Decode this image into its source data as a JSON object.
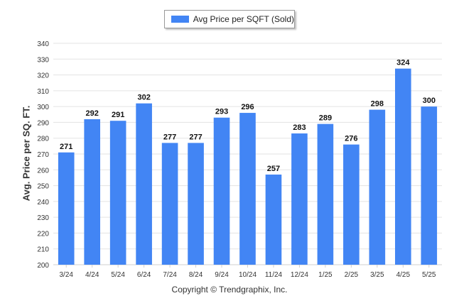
{
  "legend": {
    "label": "Avg Price per SQFT (Sold)",
    "color": "#4285f4"
  },
  "footer": "Copyright © Trendgraphix, Inc.",
  "chart_data": {
    "type": "bar",
    "ylabel": "Avg. Price per SQ. FT.",
    "xlabel": "",
    "categories": [
      "3/24",
      "4/24",
      "5/24",
      "6/24",
      "7/24",
      "8/24",
      "9/24",
      "10/24",
      "11/24",
      "12/24",
      "1/25",
      "2/25",
      "3/25",
      "4/25",
      "5/25"
    ],
    "series": [
      {
        "name": "Avg Price per SQFT (Sold)",
        "values": [
          271,
          292,
          291,
          302,
          277,
          277,
          293,
          296,
          257,
          283,
          289,
          276,
          298,
          324,
          300
        ]
      }
    ],
    "ylim": [
      200,
      340
    ],
    "yticks": [
      200,
      210,
      220,
      230,
      240,
      250,
      260,
      270,
      280,
      290,
      300,
      310,
      320,
      330,
      340
    ],
    "grid": true,
    "legend_position": "top-center",
    "bar_color": "#4285f4"
  }
}
